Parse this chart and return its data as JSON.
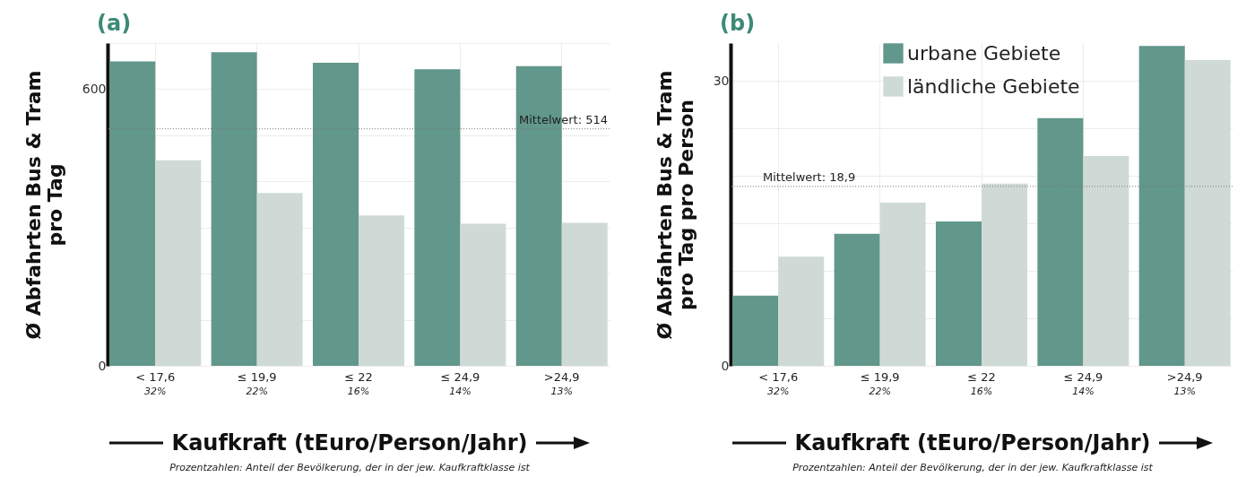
{
  "chart_data": [
    {
      "type": "bar",
      "title": "(a)",
      "ylabel": "Ø Abfahrten Bus & Tram\npro Tag",
      "xlabel": "Kaufkraft (tEuro/Person/Jahr)",
      "categories": [
        "< 17,6",
        "≤ 19,9",
        "≤ 22",
        "≤ 24,9",
        ">24,9"
      ],
      "series": [
        {
          "color": "#62978b",
          "values": [
            660,
            680,
            657,
            643,
            650
          ]
        },
        {
          "color": "#cfdad6",
          "values": [
            446,
            375,
            326,
            308,
            310
          ]
        }
      ],
      "ylim": [
        0,
        700
      ],
      "yticks": [
        0,
        {
          "value": 100,
          "label": null
        },
        {
          "value": 200,
          "label": null
        },
        {
          "value": 300,
          "label": null
        },
        {
          "value": 400,
          "label": null
        },
        {
          "value": 500,
          "label": null
        },
        600,
        {
          "value": 700,
          "label": null
        }
      ],
      "grid": true,
      "legend": false,
      "ref_lines": [
        {
          "axis": "y",
          "value": 514,
          "label": "Mittelwert: 514",
          "line_style": "dotted"
        }
      ],
      "annotations": [
        "32%",
        "22%",
        "16%",
        "14%",
        "13%",
        "Prozentzahlen: Anteil der Bevölkerung, der in der jew. Kaufkraftklasse ist"
      ]
    },
    {
      "type": "bar",
      "title": "(b)",
      "ylabel": "Ø Abfahrten Bus & Tram\npro Tag pro Person",
      "xlabel": "Kaufkraft (tEuro/Person/Jahr)",
      "categories": [
        "< 17,6",
        "≤ 19,9",
        "≤ 22",
        "≤ 24,9",
        ">24,9"
      ],
      "series": [
        {
          "name": "urbane Gebiete",
          "color": "#62978b",
          "values": [
            7.4,
            13.9,
            15.2,
            26.1,
            33.7
          ]
        },
        {
          "name": "ländliche Gebiete",
          "color": "#cfdad6",
          "values": [
            11.5,
            17.2,
            19.2,
            22.1,
            32.2
          ]
        }
      ],
      "ylim": [
        0,
        34
      ],
      "yticks": [
        0,
        {
          "value": 5,
          "label": null
        },
        {
          "value": 10,
          "label": null
        },
        {
          "value": 15,
          "label": null
        },
        {
          "value": 20,
          "label": null
        },
        {
          "value": 25,
          "label": null
        },
        30
      ],
      "grid": true,
      "legend": "top",
      "ref_lines": [
        {
          "axis": "y",
          "value": 18.9,
          "label": "Mittelwert: 18,9",
          "line_style": "dotted"
        }
      ],
      "annotations": [
        "32%",
        "22%",
        "16%",
        "14%",
        "13%",
        "Prozentzahlen: Anteil der Bevölkerung, der in der jew. Kaufkraftklasse ist"
      ]
    }
  ]
}
